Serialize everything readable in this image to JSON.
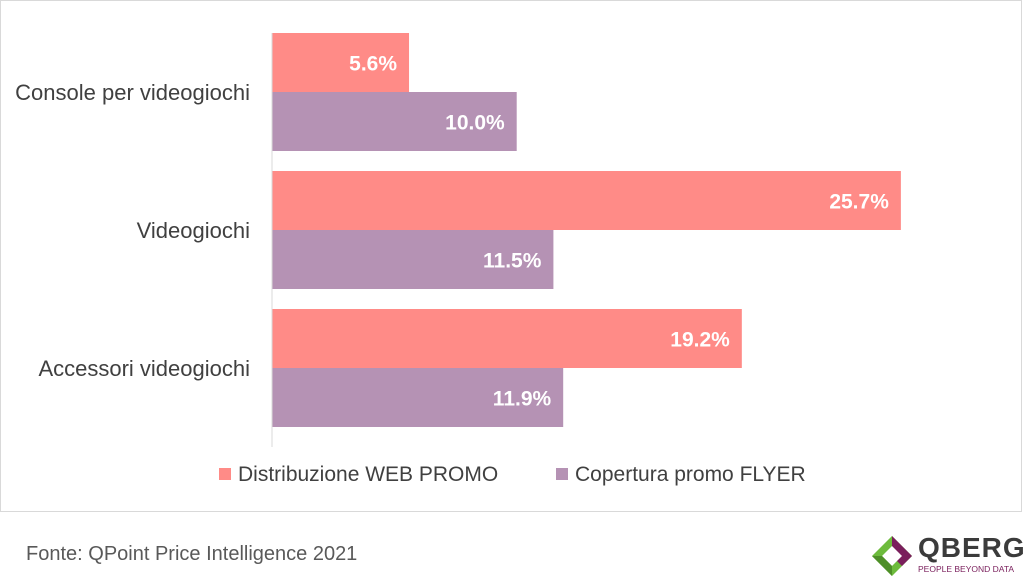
{
  "chart_data": {
    "type": "bar",
    "orientation": "horizontal",
    "categories": [
      "Console per videogiochi",
      "Videogiochi",
      "Accessori videogiochi"
    ],
    "series": [
      {
        "name": "Distribuzione WEB PROMO",
        "values": [
          5.6,
          25.7,
          19.2
        ],
        "labels": [
          "5.6%",
          "25.7%",
          "19.2%"
        ],
        "color": "#ff8b87"
      },
      {
        "name": "Copertura promo FLYER",
        "values": [
          10.0,
          11.5,
          11.9
        ],
        "labels": [
          "10.0%",
          "11.5%",
          "11.9%"
        ],
        "color": "#b592b4"
      }
    ],
    "xlim": [
      0,
      30
    ],
    "grid": false,
    "legend_position": "bottom"
  },
  "footer": {
    "source": "Fonte: QPoint Price Intelligence 2021"
  },
  "logo": {
    "word": "QBERG",
    "tagline": "PEOPLE BEYOND DATA"
  }
}
